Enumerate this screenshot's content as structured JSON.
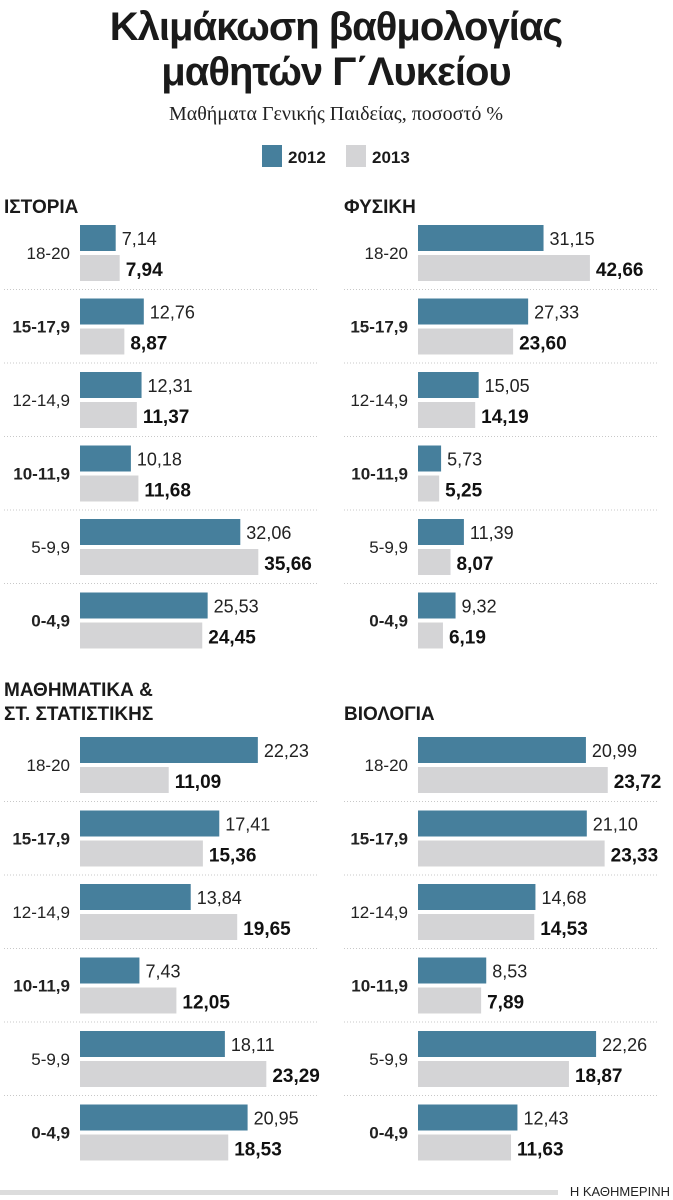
{
  "chart_data": {
    "type": "bar",
    "orientation": "horizontal",
    "title": "Κλιμάκωση βαθμολογίας μαθητών Γ΄Λυκείου",
    "subtitle": "Μαθήματα Γενικής Παιδείας, ποσοστό %",
    "legend": [
      {
        "name": "2012",
        "color": "#467f9c"
      },
      {
        "name": "2013",
        "color": "#d4d4d6"
      }
    ],
    "legend_placement": "top-center",
    "grid": false,
    "categories": [
      "18-20",
      "15-17,9",
      "12-14,9",
      "10-11,9",
      "5-9,9",
      "0-4,9"
    ],
    "panels": [
      {
        "title_lines": [
          "ΙΣΤΟΡΙΑ"
        ],
        "series": [
          {
            "name": "2012",
            "values": [
              7.14,
              12.76,
              12.31,
              10.18,
              32.06,
              25.53
            ]
          },
          {
            "name": "2013",
            "values": [
              7.94,
              8.87,
              11.37,
              11.68,
              35.66,
              24.45
            ]
          }
        ],
        "labels_2012": [
          "7,14",
          "12,76",
          "12,31",
          "10,18",
          "32,06",
          "25,53"
        ],
        "labels_2013": [
          "7,94",
          "8,87",
          "11,37",
          "11,68",
          "35,66",
          "24,45"
        ]
      },
      {
        "title_lines": [
          "ΦΥΣΙΚΗ"
        ],
        "series": [
          {
            "name": "2012",
            "values": [
              31.15,
              27.33,
              15.05,
              5.73,
              11.39,
              9.32
            ]
          },
          {
            "name": "2013",
            "values": [
              42.66,
              23.6,
              14.19,
              5.25,
              8.07,
              6.19
            ]
          }
        ],
        "labels_2012": [
          "31,15",
          "27,33",
          "15,05",
          "5,73",
          "11,39",
          "9,32"
        ],
        "labels_2013": [
          "42,66",
          "23,60",
          "14,19",
          "5,25",
          "8,07",
          "6,19"
        ]
      },
      {
        "title_lines": [
          "ΜΑΘΗΜΑΤΙΚΑ &",
          "ΣΤ. ΣΤΑΤΙΣΤΙΚΗΣ"
        ],
        "series": [
          {
            "name": "2012",
            "values": [
              22.23,
              17.41,
              13.84,
              7.43,
              18.11,
              20.95
            ]
          },
          {
            "name": "2013",
            "values": [
              11.09,
              15.36,
              19.65,
              12.05,
              23.29,
              18.53
            ]
          }
        ],
        "labels_2012": [
          "22,23",
          "17,41",
          "13,84",
          "7,43",
          "18,11",
          "20,95"
        ],
        "labels_2013": [
          "11,09",
          "15,36",
          "19,65",
          "12,05",
          "23,29",
          "18,53"
        ]
      },
      {
        "title_lines": [
          "ΒΙΟΛΟΓΙΑ"
        ],
        "series": [
          {
            "name": "2012",
            "values": [
              20.99,
              21.1,
              14.68,
              8.53,
              22.26,
              12.43
            ]
          },
          {
            "name": "2013",
            "values": [
              23.72,
              23.33,
              14.53,
              7.89,
              18.87,
              11.63
            ]
          }
        ],
        "labels_2012": [
          "20,99",
          "21,10",
          "14,68",
          "8,53",
          "22,26",
          "12,43"
        ],
        "labels_2013": [
          "23,72",
          "23,33",
          "14,53",
          "7,89",
          "18,87",
          "11,63"
        ]
      }
    ]
  },
  "header": {
    "title_line1": "Κλιμάκωση βαθμολογίας",
    "title_line2": "μαθητών Γ΄Λυκείου"
  },
  "source": "Η ΚΑΘΗΜΕΡΙΝΗ"
}
